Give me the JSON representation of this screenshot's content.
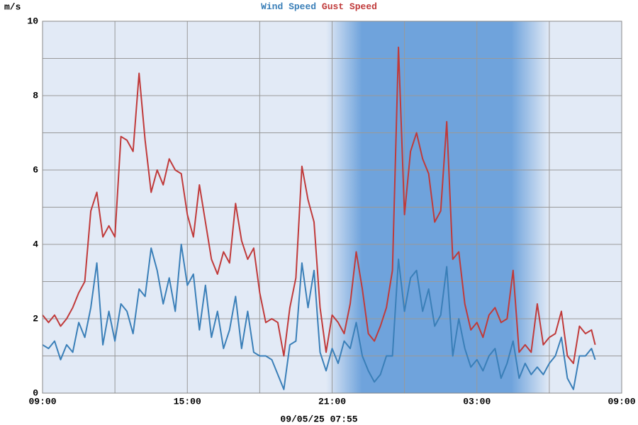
{
  "chart_data": {
    "type": "line",
    "ylabel": "m/s",
    "footer": "09/05/25 07:55",
    "x": [
      0,
      0.25,
      0.5,
      0.75,
      1,
      1.25,
      1.5,
      1.75,
      2,
      2.25,
      2.5,
      2.75,
      3,
      3.25,
      3.5,
      3.75,
      4,
      4.25,
      4.5,
      4.75,
      5,
      5.25,
      5.5,
      5.75,
      6,
      6.25,
      6.5,
      6.75,
      7,
      7.25,
      7.5,
      7.75,
      8,
      8.25,
      8.5,
      8.75,
      9,
      9.25,
      9.5,
      9.75,
      10,
      10.25,
      10.5,
      10.75,
      11,
      11.25,
      11.5,
      11.75,
      12,
      12.25,
      12.5,
      12.75,
      13,
      13.25,
      13.5,
      13.75,
      14,
      14.25,
      14.5,
      14.75,
      15,
      15.25,
      15.5,
      15.75,
      16,
      16.25,
      16.5,
      16.75,
      17,
      17.25,
      17.5,
      17.75,
      18,
      18.25,
      18.5,
      18.75,
      19,
      19.25,
      19.5,
      19.75,
      20,
      20.25,
      20.5,
      20.75,
      21,
      21.25,
      21.5,
      21.75,
      22,
      22.25,
      22.5,
      22.75,
      22.9
    ],
    "series": [
      {
        "name": "Wind Speed",
        "color": "#3a7fb8",
        "values": [
          1.3,
          1.2,
          1.4,
          0.9,
          1.3,
          1.1,
          1.9,
          1.5,
          2.3,
          3.5,
          1.3,
          2.2,
          1.4,
          2.4,
          2.2,
          1.6,
          2.8,
          2.6,
          3.9,
          3.3,
          2.4,
          3.1,
          2.2,
          4.0,
          2.9,
          3.2,
          1.7,
          2.9,
          1.5,
          2.2,
          1.2,
          1.7,
          2.6,
          1.2,
          2.2,
          1.1,
          1.0,
          1.0,
          0.9,
          0.5,
          0.1,
          1.3,
          1.4,
          3.5,
          2.3,
          3.3,
          1.1,
          0.6,
          1.2,
          0.8,
          1.4,
          1.2,
          1.9,
          1.0,
          0.6,
          0.3,
          0.5,
          1.0,
          1.0,
          3.6,
          2.2,
          3.1,
          3.3,
          2.2,
          2.8,
          1.8,
          2.1,
          3.4,
          1.0,
          2.0,
          1.2,
          0.7,
          0.9,
          0.6,
          1.0,
          1.2,
          0.4,
          0.8,
          1.4,
          0.4,
          0.8,
          0.5,
          0.7,
          0.5,
          0.8,
          1.0,
          1.5,
          0.4,
          0.1,
          1.0,
          1.0,
          1.2,
          0.9
        ]
      },
      {
        "name": "Gust Speed",
        "color": "#c03a3a",
        "values": [
          2.1,
          1.9,
          2.1,
          1.8,
          2.0,
          2.3,
          2.7,
          3.0,
          4.9,
          5.4,
          4.2,
          4.5,
          4.2,
          6.9,
          6.8,
          6.5,
          8.6,
          6.8,
          5.4,
          6.0,
          5.6,
          6.3,
          6.0,
          5.9,
          4.8,
          4.2,
          5.6,
          4.6,
          3.6,
          3.2,
          3.8,
          3.5,
          5.1,
          4.1,
          3.6,
          3.9,
          2.7,
          1.9,
          2.0,
          1.9,
          1.0,
          2.3,
          3.1,
          6.1,
          5.2,
          4.6,
          2.3,
          1.1,
          2.1,
          1.9,
          1.6,
          2.4,
          3.8,
          2.8,
          1.6,
          1.4,
          1.8,
          2.3,
          3.3,
          9.3,
          4.8,
          6.5,
          7.0,
          6.3,
          5.9,
          4.6,
          4.9,
          7.3,
          3.6,
          3.8,
          2.4,
          1.7,
          1.9,
          1.5,
          2.1,
          2.3,
          1.9,
          2.0,
          3.3,
          1.1,
          1.3,
          1.1,
          2.4,
          1.3,
          1.5,
          1.6,
          2.2,
          1.0,
          0.8,
          1.8,
          1.6,
          1.7,
          1.3
        ]
      }
    ],
    "xlim": [
      0,
      24
    ],
    "xticks": [
      {
        "value": 0,
        "label": "09:00"
      },
      {
        "value": 6,
        "label": "15:00"
      },
      {
        "value": 12,
        "label": "21:00"
      },
      {
        "value": 18,
        "label": "03:00"
      },
      {
        "value": 24,
        "label": "09:00"
      }
    ],
    "ylim": [
      0,
      10
    ],
    "yticks": [
      0,
      2,
      4,
      6,
      8,
      10
    ],
    "grid": true
  }
}
